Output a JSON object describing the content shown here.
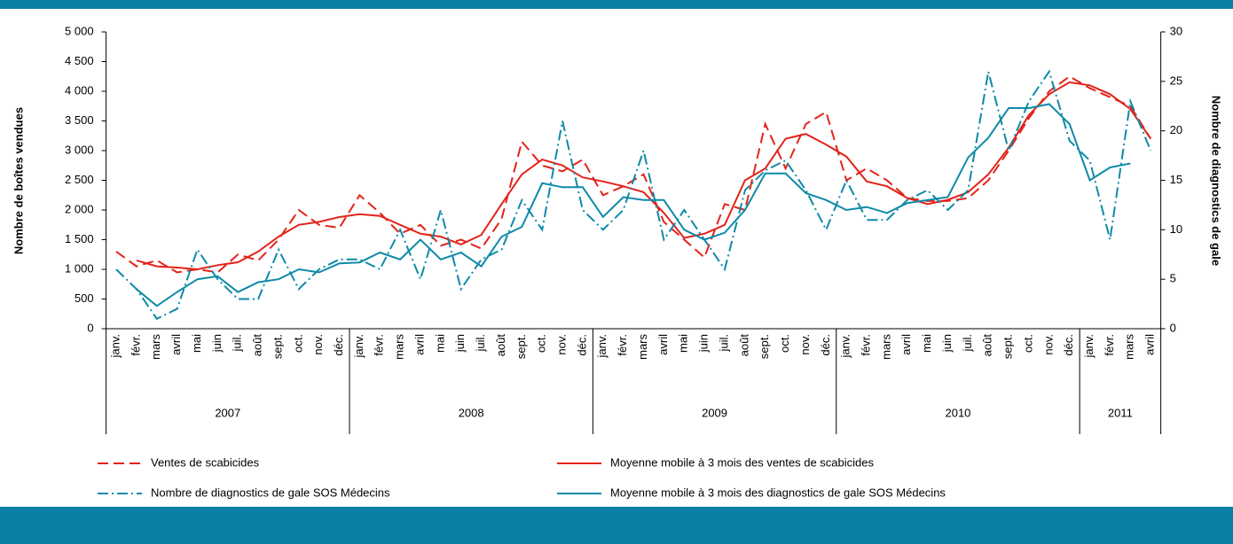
{
  "chart_data": {
    "type": "line",
    "y_label": "Nombre de boîtes vendues",
    "y2_label": "Nombre de diagnostics de gale",
    "categories": [
      "janv.",
      "févr.",
      "mars",
      "avril",
      "mai",
      "juin",
      "juil.",
      "août",
      "sept.",
      "oct.",
      "nov.",
      "déc.",
      "janv.",
      "févr.",
      "mars",
      "avril",
      "mai",
      "juin",
      "juil.",
      "août",
      "sept.",
      "oct.",
      "nov.",
      "déc.",
      "janv.",
      "févr.",
      "mars",
      "avril",
      "mai",
      "juin",
      "juil.",
      "août",
      "sept.",
      "oct.",
      "nov.",
      "déc.",
      "janv.",
      "févr.",
      "mars",
      "avril",
      "mai",
      "juin",
      "juil.",
      "août",
      "sept.",
      "oct.",
      "nov.",
      "déc.",
      "janv.",
      "févr.",
      "mars",
      "avril"
    ],
    "years": [
      "2007",
      "2008",
      "2009",
      "2010",
      "2011"
    ],
    "ylim": [
      0,
      5000
    ],
    "yticks": [
      0,
      500,
      {
        "value": 1000,
        "label": "1 000"
      },
      {
        "value": 1500,
        "label": "1 500"
      },
      {
        "value": 2000,
        "label": "2 000"
      },
      {
        "value": 2500,
        "label": "2 500"
      },
      {
        "value": 3000,
        "label": "3 000"
      },
      {
        "value": 3500,
        "label": "3 500"
      },
      {
        "value": 4000,
        "label": "4 000"
      },
      {
        "value": 4500,
        "label": "4 500"
      },
      {
        "value": 5000,
        "label": "5 000"
      }
    ],
    "y2lim": [
      0,
      30
    ],
    "y2ticks": [
      0,
      5,
      10,
      15,
      20,
      25,
      30
    ],
    "series": [
      {
        "name": "Ventes de scabicides",
        "color": "#e2231a",
        "dash": "dashed",
        "values": [
          1300,
          1050,
          1150,
          950,
          1000,
          950,
          1250,
          1150,
          1500,
          2000,
          1750,
          1700,
          2250,
          1950,
          1600,
          1750,
          1400,
          1500,
          1350,
          1850,
          3150,
          2750,
          2650,
          2850,
          2250,
          2400,
          2600,
          1800,
          1500,
          1200,
          2100,
          2000,
          3450,
          2700,
          3450,
          3650,
          2500,
          2700,
          2500,
          2200,
          2150,
          2150,
          2200,
          2500,
          3000,
          3550,
          4000,
          4250,
          4050,
          3900,
          3750,
          3200
        ]
      },
      {
        "name": "Moyenne mobile à 3 mois des ventes de scabicides",
        "color": "#e2231a",
        "dash": "solid",
        "values": [
          null,
          1150,
          1050,
          1030,
          1000,
          1070,
          1120,
          1300,
          1550,
          1750,
          1800,
          1880,
          1930,
          1900,
          1750,
          1600,
          1550,
          1420,
          1580,
          2100,
          2600,
          2850,
          2750,
          2550,
          2480,
          2400,
          2300,
          1950,
          1530,
          1600,
          1750,
          2500,
          2700,
          3200,
          3280,
          3100,
          2900,
          2480,
          2400,
          2200,
          2100,
          2170,
          2300,
          2600,
          3050,
          3600,
          3950,
          4150,
          4100,
          3950,
          3700,
          3200
        ]
      },
      {
        "name": "Nombre de diagnostics de gale SOS Médecins",
        "color": "#0e8aa8",
        "dash": "dashdot",
        "axis": "y2",
        "values": [
          6,
          4,
          1,
          2,
          8,
          5,
          3,
          3,
          8,
          4,
          6,
          7,
          7,
          6,
          10,
          5,
          12,
          4,
          7,
          8,
          13,
          10,
          21,
          12,
          10,
          12,
          18,
          9,
          12,
          9,
          6,
          14,
          16,
          17,
          14,
          10,
          15,
          11,
          11,
          13,
          14,
          12,
          14,
          26,
          18,
          23,
          26,
          19,
          17,
          9,
          23,
          18
        ]
      },
      {
        "name": "Moyenne mobile à 3 mois des diagnostics de gale SOS Médecins",
        "color": "#0e8aa8",
        "dash": "solid",
        "axis": "y2",
        "values": [
          null,
          4,
          2.3,
          3.7,
          5,
          5.3,
          3.7,
          4.7,
          5,
          6,
          5.7,
          6.6,
          6.7,
          7.7,
          7,
          9,
          7,
          7.7,
          6.3,
          9.3,
          10.3,
          14.7,
          14.3,
          14.3,
          11.3,
          13.3,
          13,
          13,
          10,
          9,
          9.7,
          12,
          15.7,
          15.7,
          13.7,
          13,
          12,
          12.3,
          11.7,
          12.7,
          13,
          13.3,
          17.3,
          19.3,
          22.3,
          22.3,
          22.7,
          20.7,
          15,
          16.3,
          16.7,
          null
        ]
      }
    ]
  }
}
